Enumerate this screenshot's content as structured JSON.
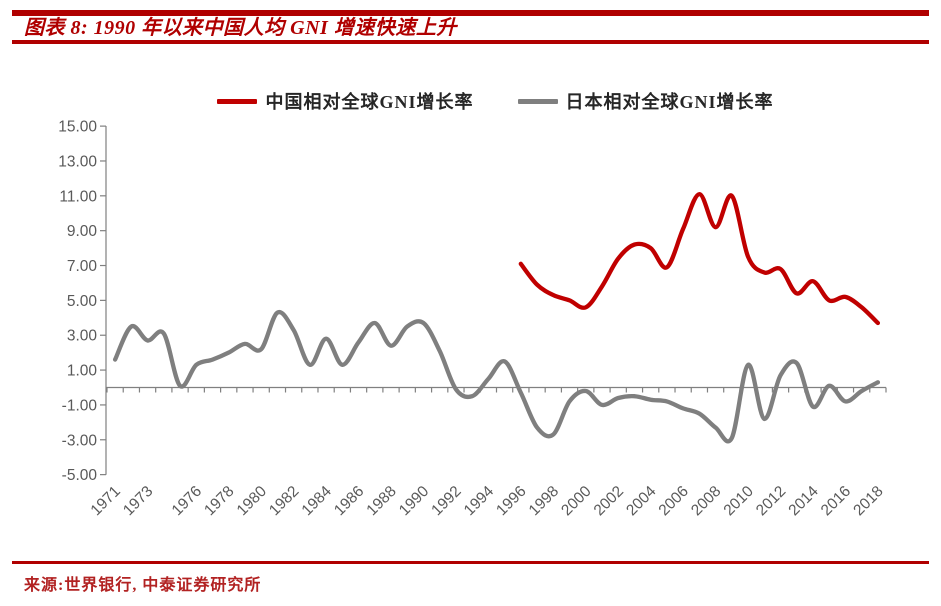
{
  "header": {
    "title": "图表 8: 1990 年以来中国人均 GNI 增速快速上升"
  },
  "footer": {
    "source": "来源:世界银行, 中泰证券研究所"
  },
  "colors": {
    "accent_red": "#B00000",
    "china_line": "#C00000",
    "japan_line": "#7F7F7F",
    "axis": "#808080",
    "tick_text": "#595959"
  },
  "chart_data": {
    "type": "line",
    "title": "图表 8: 1990 年以来中国人均 GNI 增速快速上升",
    "xlabel": "",
    "ylabel": "",
    "ylim": [
      -5,
      15
    ],
    "y_tick_labels": [
      "15.00",
      "13.00",
      "11.00",
      "9.00",
      "7.00",
      "5.00",
      "3.00",
      "1.00",
      "-1.00",
      "-3.00",
      "-5.00"
    ],
    "y_tick_values": [
      15,
      13,
      11,
      9,
      7,
      5,
      3,
      1,
      -1,
      -3,
      -5
    ],
    "x": [
      1971,
      1972,
      1973,
      1974,
      1975,
      1976,
      1977,
      1978,
      1979,
      1980,
      1981,
      1982,
      1983,
      1984,
      1985,
      1986,
      1987,
      1988,
      1989,
      1990,
      1991,
      1992,
      1993,
      1994,
      1995,
      1996,
      1997,
      1998,
      1999,
      2000,
      2001,
      2002,
      2003,
      2004,
      2005,
      2006,
      2007,
      2008,
      2009,
      2010,
      2011,
      2012,
      2013,
      2014,
      2015,
      2016,
      2017,
      2018
    ],
    "x_tick_labels": [
      "1971",
      "1973",
      "1976",
      "1978",
      "1980",
      "1982",
      "1984",
      "1986",
      "1988",
      "1990",
      "1992",
      "1994",
      "1996",
      "1998",
      "2000",
      "2002",
      "2004",
      "2006",
      "2008",
      "2010",
      "2012",
      "2014",
      "2016",
      "2018"
    ],
    "grid": false,
    "legend_position": "top",
    "smoothed_lines": true,
    "series": [
      {
        "name": "中国相对全球GNI增长率",
        "color": "#C00000",
        "start_year": 1996,
        "values": [
          7.1,
          5.9,
          5.3,
          5.0,
          4.6,
          5.8,
          7.4,
          8.2,
          8.0,
          6.9,
          9.1,
          11.1,
          9.2,
          11.0,
          7.5,
          6.6,
          6.8,
          5.4,
          6.1,
          5.0,
          5.2,
          4.6,
          3.7
        ]
      },
      {
        "name": "日本相对全球GNI增长率",
        "color": "#7F7F7F",
        "start_year": 1971,
        "values": [
          1.6,
          3.5,
          2.7,
          3.1,
          0.1,
          1.3,
          1.6,
          2.0,
          2.5,
          2.2,
          4.3,
          3.3,
          1.3,
          2.8,
          1.3,
          2.6,
          3.7,
          2.4,
          3.5,
          3.7,
          2.1,
          -0.1,
          -0.5,
          0.5,
          1.5,
          -0.3,
          -2.3,
          -2.7,
          -0.8,
          -0.2,
          -1.0,
          -0.6,
          -0.5,
          -0.7,
          -0.8,
          -1.2,
          -1.5,
          -2.3,
          -2.9,
          1.3,
          -1.8,
          0.7,
          1.4,
          -1.1,
          0.1,
          -0.8,
          -0.2,
          0.3
        ]
      }
    ]
  }
}
